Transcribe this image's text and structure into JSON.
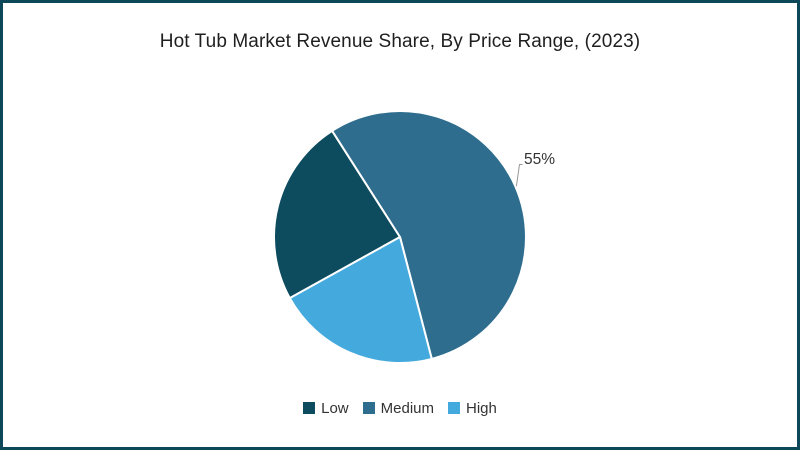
{
  "frame": {
    "border_color": "#0d4859"
  },
  "title": {
    "text": "Hot Tub Market Revenue Share, By Price Range, (2023)"
  },
  "chart_data": {
    "type": "pie",
    "title": "Hot Tub Market Revenue Share, By Price Range, (2023)",
    "categories": [
      "Low",
      "Medium",
      "High"
    ],
    "values": [
      24,
      55,
      21
    ],
    "colors": [
      "#0d4b5f",
      "#2e6d8e",
      "#44a9dd"
    ],
    "units": "%",
    "start_angle_deg": 209,
    "direction": "clockwise",
    "visible_data_label": {
      "slice": "Medium",
      "text": "55%"
    },
    "legend_position": "bottom"
  },
  "legend": {
    "items": [
      {
        "label": "Low",
        "color": "#0d4b5f"
      },
      {
        "label": "Medium",
        "color": "#2e6d8e"
      },
      {
        "label": "High",
        "color": "#44a9dd"
      }
    ]
  }
}
